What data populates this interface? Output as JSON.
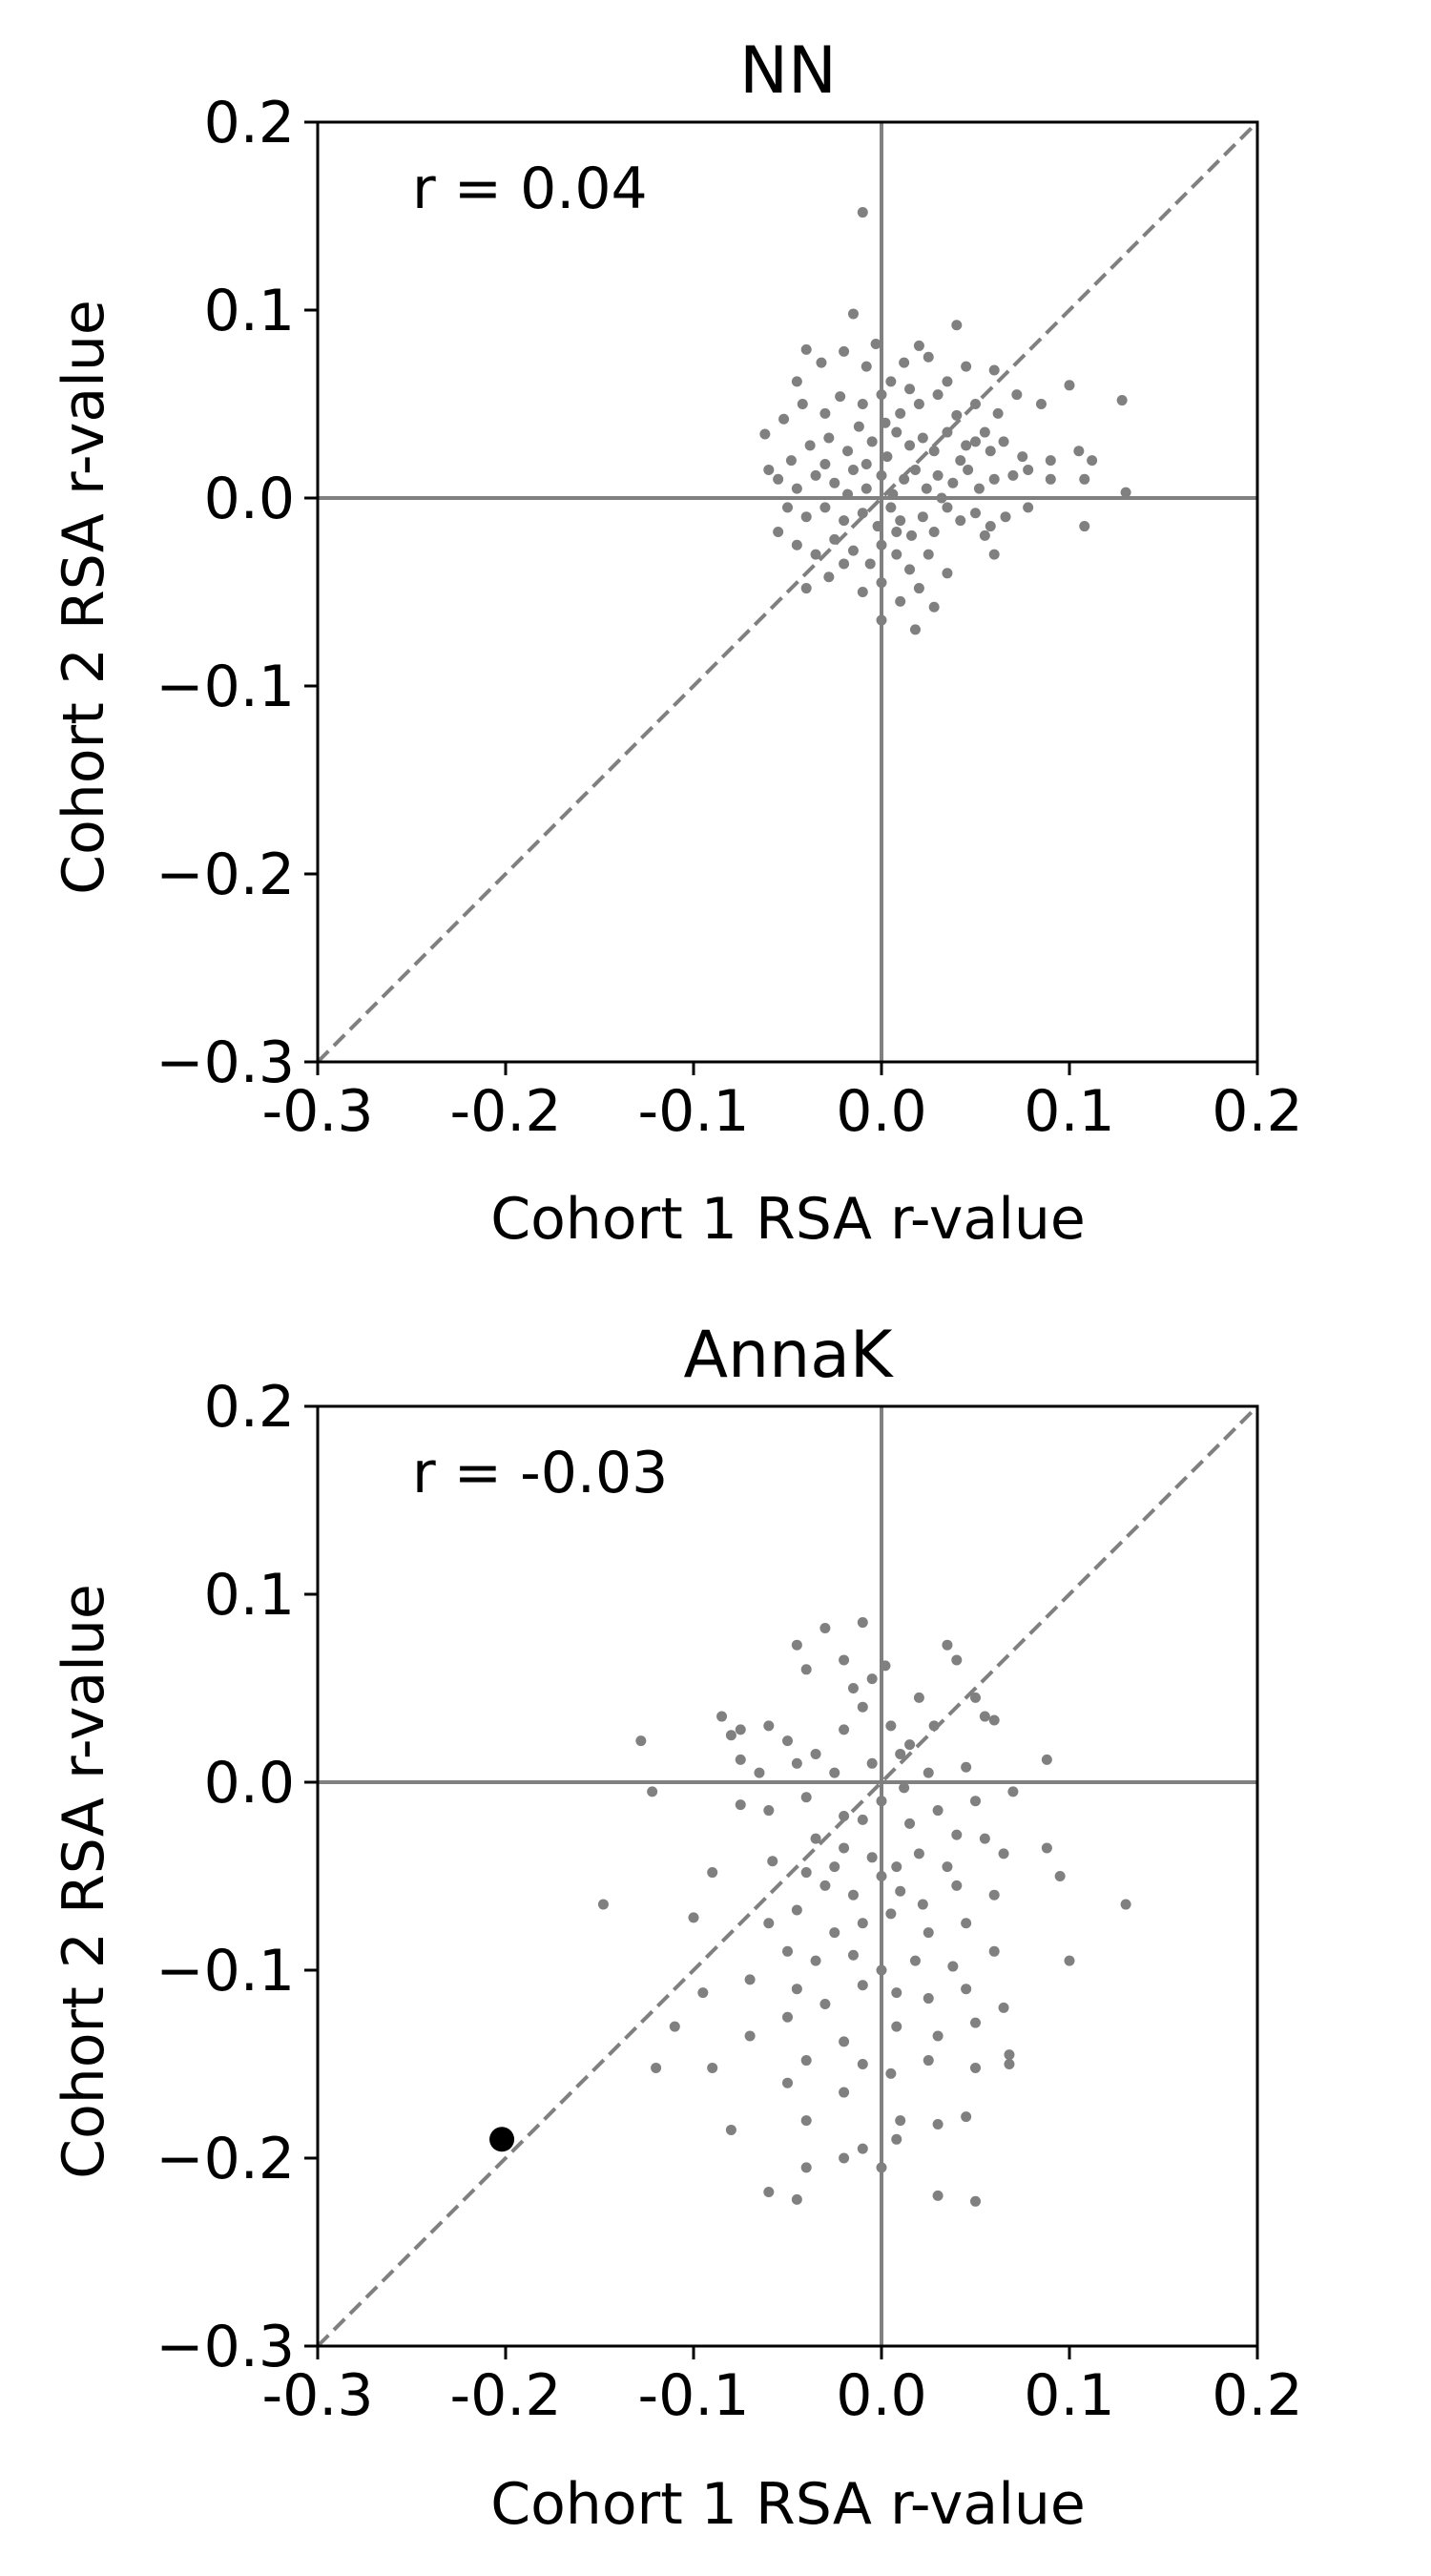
{
  "chart_data": [
    {
      "type": "scatter",
      "title": "NN",
      "xlabel": "Cohort 1 RSA r-value",
      "ylabel": "Cohort 2 RSA r-value",
      "annotation": "r = 0.04",
      "xlim": [
        -0.3,
        0.2
      ],
      "ylim": [
        -0.3,
        0.2
      ],
      "xticks": [
        -0.3,
        -0.2,
        -0.1,
        0.0,
        0.1,
        0.2
      ],
      "xtick_labels": [
        "-0.3",
        "-0.2",
        "-0.1",
        "0.0",
        "0.1",
        "0.2"
      ],
      "yticks": [
        -0.3,
        -0.2,
        -0.1,
        0.0,
        0.1,
        0.2
      ],
      "ytick_labels": [
        "−0.3",
        "−0.2",
        "−0.1",
        "0.0",
        "0.1",
        "0.2"
      ],
      "reference_lines": {
        "x_zero": true,
        "y_zero": true,
        "diagonal": true
      },
      "grid": false,
      "colors": {
        "points": "#808080",
        "lines": "#808080"
      },
      "points": [
        [
          -0.01,
          0.152
        ],
        [
          -0.015,
          0.098
        ],
        [
          -0.04,
          0.079
        ],
        [
          -0.003,
          0.082
        ],
        [
          0.02,
          0.081
        ],
        [
          0.04,
          0.092
        ],
        [
          -0.045,
          0.062
        ],
        [
          -0.032,
          0.072
        ],
        [
          -0.02,
          0.078
        ],
        [
          -0.008,
          0.07
        ],
        [
          0.005,
          0.062
        ],
        [
          0.012,
          0.072
        ],
        [
          0.025,
          0.075
        ],
        [
          0.045,
          0.07
        ],
        [
          0.06,
          0.068
        ],
        [
          0.1,
          0.06
        ],
        [
          0.128,
          0.052
        ],
        [
          -0.062,
          0.034
        ],
        [
          -0.052,
          0.042
        ],
        [
          -0.042,
          0.05
        ],
        [
          -0.03,
          0.045
        ],
        [
          -0.022,
          0.054
        ],
        [
          -0.01,
          0.05
        ],
        [
          0.0,
          0.055
        ],
        [
          0.01,
          0.045
        ],
        [
          0.02,
          0.05
        ],
        [
          0.03,
          0.055
        ],
        [
          0.04,
          0.044
        ],
        [
          0.05,
          0.05
        ],
        [
          0.062,
          0.045
        ],
        [
          0.072,
          0.055
        ],
        [
          0.085,
          0.05
        ],
        [
          0.035,
          0.062
        ],
        [
          0.055,
          0.035
        ],
        [
          -0.048,
          0.02
        ],
        [
          -0.038,
          0.028
        ],
        [
          -0.028,
          0.032
        ],
        [
          -0.018,
          0.025
        ],
        [
          -0.012,
          0.038
        ],
        [
          -0.005,
          0.03
        ],
        [
          0.003,
          0.022
        ],
        [
          0.008,
          0.035
        ],
        [
          0.015,
          0.028
        ],
        [
          0.022,
          0.032
        ],
        [
          0.028,
          0.025
        ],
        [
          0.035,
          0.035
        ],
        [
          0.042,
          0.02
        ],
        [
          0.05,
          0.03
        ],
        [
          0.058,
          0.025
        ],
        [
          0.065,
          0.03
        ],
        [
          0.075,
          0.022
        ],
        [
          0.09,
          0.02
        ],
        [
          0.105,
          0.025
        ],
        [
          0.112,
          0.02
        ],
        [
          -0.055,
          0.01
        ],
        [
          -0.045,
          0.005
        ],
        [
          -0.035,
          0.012
        ],
        [
          -0.025,
          0.008
        ],
        [
          -0.015,
          0.015
        ],
        [
          -0.008,
          0.005
        ],
        [
          0.0,
          0.012
        ],
        [
          0.006,
          0.002
        ],
        [
          0.012,
          0.01
        ],
        [
          0.018,
          0.015
        ],
        [
          0.024,
          0.005
        ],
        [
          0.03,
          0.012
        ],
        [
          0.038,
          0.008
        ],
        [
          0.046,
          0.015
        ],
        [
          0.052,
          0.005
        ],
        [
          0.06,
          0.01
        ],
        [
          0.07,
          0.012
        ],
        [
          0.078,
          0.015
        ],
        [
          0.09,
          0.01
        ],
        [
          0.108,
          0.01
        ],
        [
          0.13,
          0.003
        ],
        [
          -0.05,
          -0.005
        ],
        [
          -0.04,
          -0.01
        ],
        [
          -0.03,
          -0.005
        ],
        [
          -0.02,
          -0.012
        ],
        [
          -0.01,
          -0.008
        ],
        [
          -0.002,
          -0.015
        ],
        [
          0.005,
          -0.005
        ],
        [
          0.01,
          -0.012
        ],
        [
          0.016,
          -0.02
        ],
        [
          0.022,
          -0.01
        ],
        [
          0.028,
          -0.018
        ],
        [
          0.035,
          -0.005
        ],
        [
          0.042,
          -0.012
        ],
        [
          0.05,
          -0.008
        ],
        [
          0.058,
          -0.015
        ],
        [
          0.066,
          -0.01
        ],
        [
          0.078,
          -0.005
        ],
        [
          0.108,
          -0.015
        ],
        [
          -0.045,
          -0.025
        ],
        [
          -0.035,
          -0.03
        ],
        [
          -0.025,
          -0.022
        ],
        [
          -0.015,
          -0.028
        ],
        [
          -0.006,
          -0.035
        ],
        [
          0.0,
          -0.025
        ],
        [
          0.008,
          -0.03
        ],
        [
          0.015,
          -0.038
        ],
        [
          0.025,
          -0.03
        ],
        [
          0.035,
          -0.04
        ],
        [
          0.055,
          -0.02
        ],
        [
          0.06,
          -0.03
        ],
        [
          -0.04,
          -0.048
        ],
        [
          -0.028,
          -0.042
        ],
        [
          -0.01,
          -0.05
        ],
        [
          0.0,
          -0.045
        ],
        [
          0.01,
          -0.055
        ],
        [
          0.02,
          -0.048
        ],
        [
          0.028,
          -0.058
        ],
        [
          0.018,
          -0.07
        ],
        [
          0.0,
          -0.065
        ],
        [
          -0.02,
          -0.035
        ],
        [
          -0.055,
          -0.018
        ],
        [
          -0.06,
          0.015
        ],
        [
          -0.03,
          0.018
        ],
        [
          0.002,
          0.04
        ],
        [
          0.015,
          0.058
        ],
        [
          0.045,
          0.028
        ],
        [
          -0.018,
          0.002
        ],
        [
          0.008,
          -0.018
        ],
        [
          0.032,
          0.0
        ],
        [
          -0.008,
          0.018
        ]
      ]
    },
    {
      "type": "scatter",
      "title": "AnnaK",
      "xlabel": "Cohort 1 RSA r-value",
      "ylabel": "Cohort 2 RSA r-value",
      "annotation": "r = -0.03",
      "xlim": [
        -0.3,
        0.2
      ],
      "ylim": [
        -0.3,
        0.2
      ],
      "xticks": [
        -0.3,
        -0.2,
        -0.1,
        0.0,
        0.1,
        0.2
      ],
      "xtick_labels": [
        "-0.3",
        "-0.2",
        "-0.1",
        "0.0",
        "0.1",
        "0.2"
      ],
      "yticks": [
        -0.3,
        -0.2,
        -0.1,
        0.0,
        0.1,
        0.2
      ],
      "ytick_labels": [
        "−0.3",
        "−0.2",
        "−0.1",
        "0.0",
        "0.1",
        "0.2"
      ],
      "reference_lines": {
        "x_zero": true,
        "y_zero": true,
        "diagonal": true
      },
      "grid": false,
      "colors": {
        "points": "#808080",
        "lines": "#808080",
        "highlight": "#000000"
      },
      "highlight_point": [
        -0.202,
        -0.19
      ],
      "points": [
        [
          -0.045,
          0.073
        ],
        [
          -0.03,
          0.082
        ],
        [
          -0.01,
          0.085
        ],
        [
          0.002,
          0.062
        ],
        [
          0.035,
          0.073
        ],
        [
          0.04,
          0.065
        ],
        [
          -0.04,
          0.06
        ],
        [
          -0.02,
          0.065
        ],
        [
          -0.005,
          0.055
        ],
        [
          0.02,
          0.045
        ],
        [
          0.05,
          0.045
        ],
        [
          -0.085,
          0.035
        ],
        [
          -0.075,
          0.028
        ],
        [
          -0.08,
          0.025
        ],
        [
          -0.06,
          0.03
        ],
        [
          -0.05,
          0.022
        ],
        [
          -0.035,
          0.015
        ],
        [
          -0.02,
          0.028
        ],
        [
          -0.01,
          0.04
        ],
        [
          0.005,
          0.03
        ],
        [
          0.015,
          0.02
        ],
        [
          0.055,
          0.035
        ],
        [
          0.06,
          0.033
        ],
        [
          -0.128,
          0.022
        ],
        [
          -0.075,
          0.012
        ],
        [
          -0.065,
          0.005
        ],
        [
          -0.045,
          0.01
        ],
        [
          -0.025,
          0.005
        ],
        [
          -0.005,
          0.01
        ],
        [
          0.01,
          0.015
        ],
        [
          0.025,
          0.005
        ],
        [
          0.045,
          0.008
        ],
        [
          0.088,
          0.012
        ],
        [
          -0.122,
          -0.005
        ],
        [
          -0.075,
          -0.012
        ],
        [
          -0.06,
          -0.015
        ],
        [
          -0.04,
          -0.008
        ],
        [
          -0.02,
          -0.018
        ],
        [
          -0.01,
          -0.02
        ],
        [
          0.0,
          -0.01
        ],
        [
          0.015,
          -0.022
        ],
        [
          0.03,
          -0.015
        ],
        [
          0.05,
          -0.01
        ],
        [
          0.07,
          -0.005
        ],
        [
          -0.035,
          -0.03
        ],
        [
          -0.02,
          -0.035
        ],
        [
          -0.005,
          -0.04
        ],
        [
          0.008,
          -0.045
        ],
        [
          0.02,
          -0.038
        ],
        [
          0.035,
          -0.045
        ],
        [
          0.055,
          -0.03
        ],
        [
          0.065,
          -0.038
        ],
        [
          0.088,
          -0.035
        ],
        [
          -0.09,
          -0.048
        ],
        [
          -0.04,
          -0.048
        ],
        [
          -0.03,
          -0.055
        ],
        [
          -0.015,
          -0.06
        ],
        [
          0.0,
          -0.05
        ],
        [
          0.01,
          -0.058
        ],
        [
          0.022,
          -0.065
        ],
        [
          0.04,
          -0.055
        ],
        [
          0.06,
          -0.06
        ],
        [
          0.095,
          -0.05
        ],
        [
          -0.148,
          -0.065
        ],
        [
          -0.1,
          -0.072
        ],
        [
          -0.06,
          -0.075
        ],
        [
          -0.045,
          -0.068
        ],
        [
          -0.025,
          -0.08
        ],
        [
          -0.01,
          -0.075
        ],
        [
          0.005,
          -0.07
        ],
        [
          0.025,
          -0.08
        ],
        [
          0.045,
          -0.075
        ],
        [
          0.13,
          -0.065
        ],
        [
          -0.05,
          -0.09
        ],
        [
          -0.035,
          -0.095
        ],
        [
          -0.015,
          -0.092
        ],
        [
          0.0,
          -0.1
        ],
        [
          0.018,
          -0.095
        ],
        [
          0.038,
          -0.098
        ],
        [
          0.06,
          -0.09
        ],
        [
          0.1,
          -0.095
        ],
        [
          -0.095,
          -0.112
        ],
        [
          -0.07,
          -0.105
        ],
        [
          -0.045,
          -0.11
        ],
        [
          -0.03,
          -0.118
        ],
        [
          -0.01,
          -0.108
        ],
        [
          0.008,
          -0.112
        ],
        [
          0.025,
          -0.115
        ],
        [
          0.045,
          -0.11
        ],
        [
          0.065,
          -0.12
        ],
        [
          -0.11,
          -0.13
        ],
        [
          -0.07,
          -0.135
        ],
        [
          -0.05,
          -0.125
        ],
        [
          -0.02,
          -0.138
        ],
        [
          0.008,
          -0.13
        ],
        [
          0.03,
          -0.135
        ],
        [
          0.05,
          -0.128
        ],
        [
          0.068,
          -0.145
        ],
        [
          -0.12,
          -0.152
        ],
        [
          -0.09,
          -0.152
        ],
        [
          -0.04,
          -0.148
        ],
        [
          -0.01,
          -0.15
        ],
        [
          0.005,
          -0.155
        ],
        [
          0.025,
          -0.148
        ],
        [
          0.05,
          -0.152
        ],
        [
          0.068,
          -0.15
        ],
        [
          -0.05,
          -0.16
        ],
        [
          -0.08,
          -0.185
        ],
        [
          -0.04,
          -0.18
        ],
        [
          -0.02,
          -0.165
        ],
        [
          0.01,
          -0.18
        ],
        [
          0.03,
          -0.182
        ],
        [
          0.045,
          -0.178
        ],
        [
          -0.04,
          -0.205
        ],
        [
          -0.02,
          -0.2
        ],
        [
          -0.01,
          -0.195
        ],
        [
          0.008,
          -0.19
        ],
        [
          0.0,
          -0.205
        ],
        [
          -0.06,
          -0.218
        ],
        [
          -0.045,
          -0.222
        ],
        [
          0.03,
          -0.22
        ],
        [
          0.05,
          -0.223
        ],
        [
          -0.015,
          0.05
        ],
        [
          0.012,
          -0.003
        ],
        [
          -0.025,
          -0.045
        ],
        [
          0.028,
          0.03
        ],
        [
          -0.058,
          -0.042
        ],
        [
          0.04,
          -0.028
        ]
      ]
    }
  ]
}
